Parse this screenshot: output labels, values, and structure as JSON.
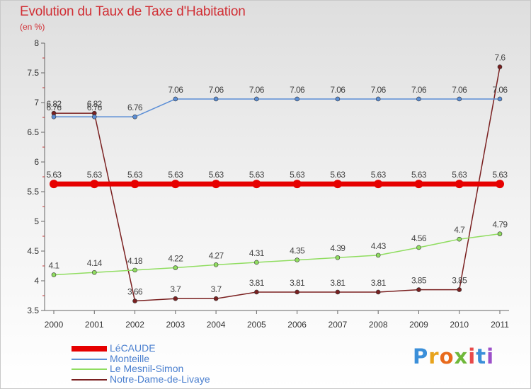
{
  "title": "Evolution du Taux de Taxe d'Habitation",
  "subtitle": "(en %)",
  "logo_text": "Proxiti",
  "chart_data": {
    "type": "line",
    "x": [
      "2000",
      "2001",
      "2002",
      "2003",
      "2004",
      "2005",
      "2006",
      "2007",
      "2008",
      "2009",
      "2010",
      "2011"
    ],
    "ylim": [
      3.5,
      8
    ],
    "yticks": [
      "3.5",
      "4",
      "4.5",
      "5",
      "5.5",
      "6",
      "6.5",
      "7",
      "7.5",
      "8"
    ],
    "grid": false,
    "legend_position": "bottom-left",
    "series": [
      {
        "name": "LéCAUDE",
        "color": "#e60000",
        "values": [
          5.63,
          5.63,
          5.63,
          5.63,
          5.63,
          5.63,
          5.63,
          5.63,
          5.63,
          5.63,
          5.63,
          5.63
        ],
        "labels": [
          "5.63",
          "5.63",
          "5.63",
          "5.63",
          "5.63",
          "5.63",
          "5.63",
          "5.63",
          "5.63",
          "5.63",
          "5.63",
          "5.63"
        ]
      },
      {
        "name": "Monteille",
        "color": "#5b8ed6",
        "values": [
          6.76,
          6.76,
          6.76,
          7.06,
          7.06,
          7.06,
          7.06,
          7.06,
          7.06,
          7.06,
          7.06,
          7.06
        ],
        "labels": [
          "6.76",
          "6.76",
          "6.76",
          "7.06",
          "7.06",
          "7.06",
          "7.06",
          "7.06",
          "7.06",
          "7.06",
          "7.06",
          "7.06"
        ]
      },
      {
        "name": "Le Mesnil-Simon",
        "color": "#90dd60",
        "values": [
          4.1,
          4.14,
          4.18,
          4.22,
          4.27,
          4.31,
          4.35,
          4.39,
          4.43,
          4.56,
          4.7,
          4.79
        ],
        "labels": [
          "4.1",
          "4.14",
          "4.18",
          "4.22",
          "4.27",
          "4.31",
          "4.35",
          "4.39",
          "4.43",
          "4.56",
          "4.7",
          "4.79"
        ]
      },
      {
        "name": "Notre-Dame-de-Livaye",
        "color": "#7a2020",
        "values": [
          6.82,
          6.82,
          3.66,
          3.7,
          3.7,
          3.81,
          3.81,
          3.81,
          3.81,
          3.85,
          3.85,
          7.6
        ],
        "labels": [
          "6.82",
          "6.82",
          "3.66",
          "3.7",
          "3.7",
          "3.81",
          "3.81",
          "3.81",
          "3.81",
          "3.85",
          "3.85",
          "7.6"
        ]
      }
    ]
  }
}
